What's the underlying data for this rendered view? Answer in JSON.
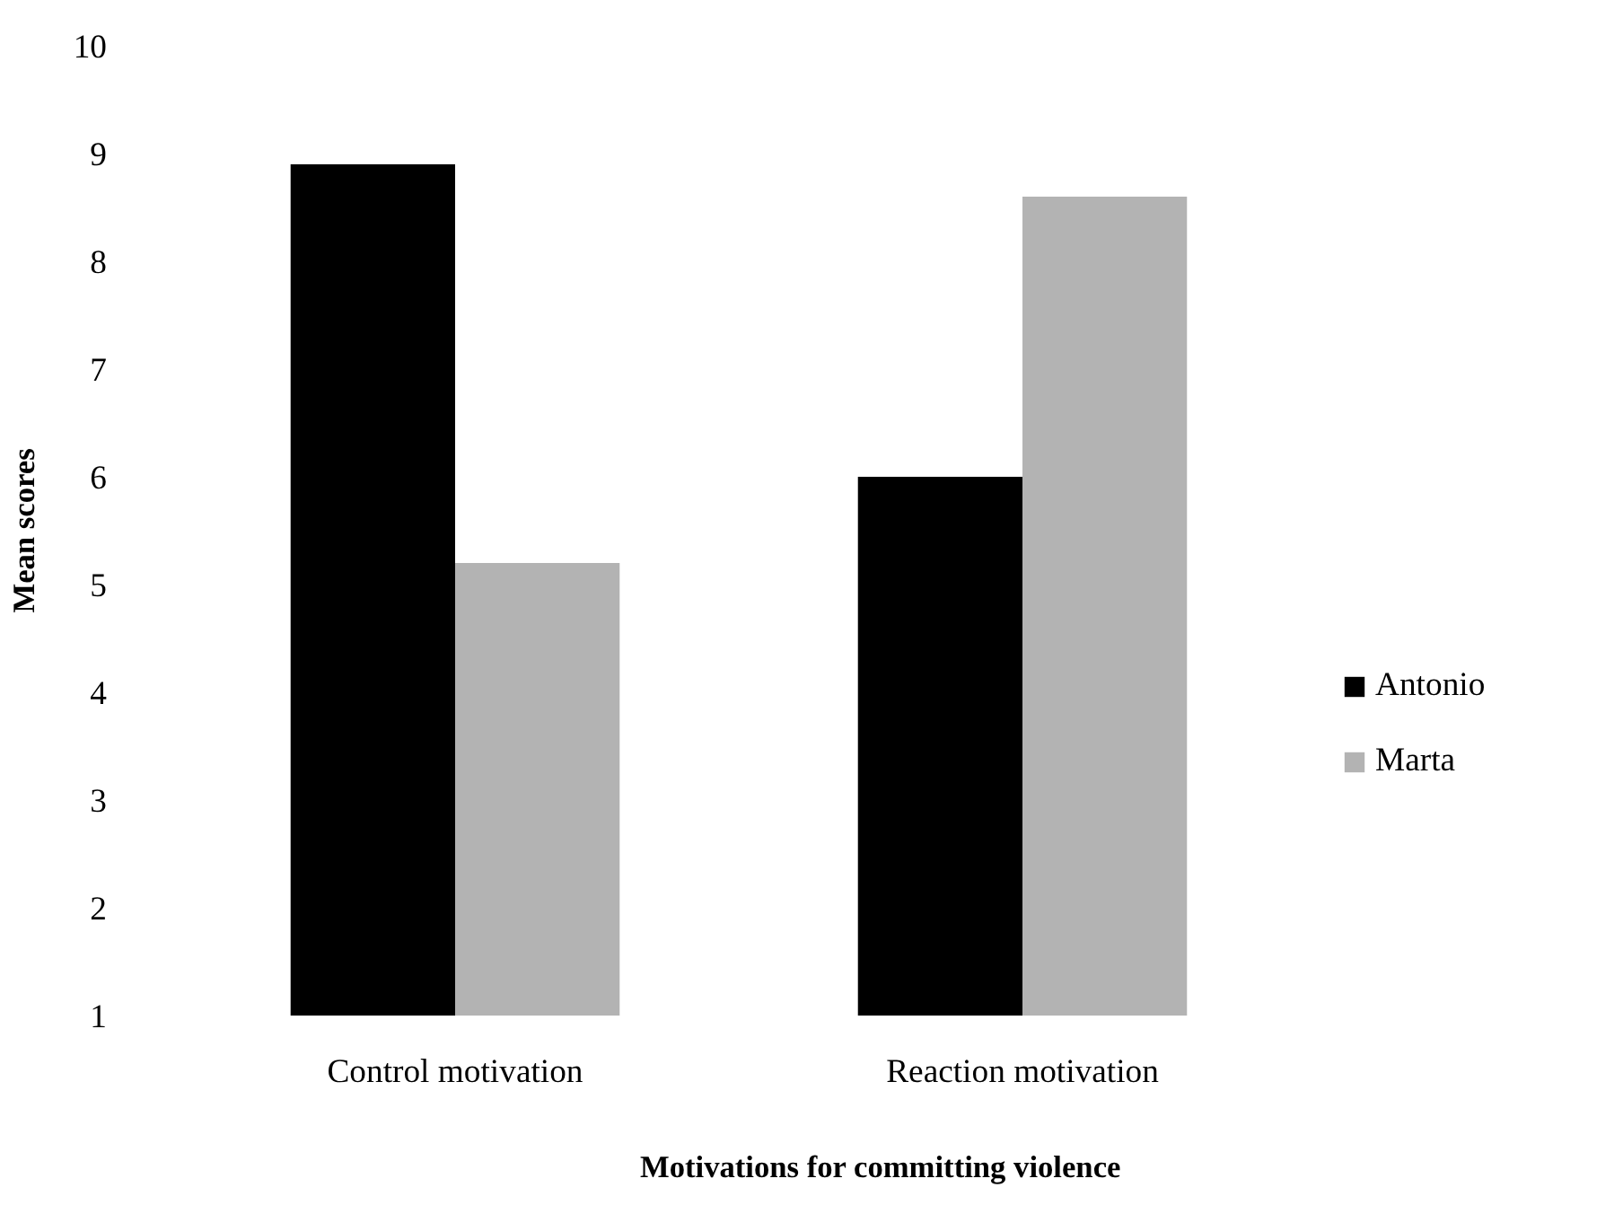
{
  "chart_data": {
    "type": "bar",
    "xlabel": "Motivations for committing violence",
    "ylabel": "Mean scores",
    "categories": [
      "Control motivation",
      "Reaction motivation"
    ],
    "series": [
      {
        "name": "Antonio",
        "color": "#000000",
        "values": [
          8.9,
          6.0
        ]
      },
      {
        "name": "Marta",
        "color": "#b3b3b3",
        "values": [
          5.2,
          8.6
        ]
      }
    ],
    "ylim": [
      1,
      10
    ],
    "yticks": [
      1,
      2,
      3,
      4,
      5,
      6,
      7,
      8,
      9,
      10
    ],
    "grid": false,
    "legend": "right"
  }
}
